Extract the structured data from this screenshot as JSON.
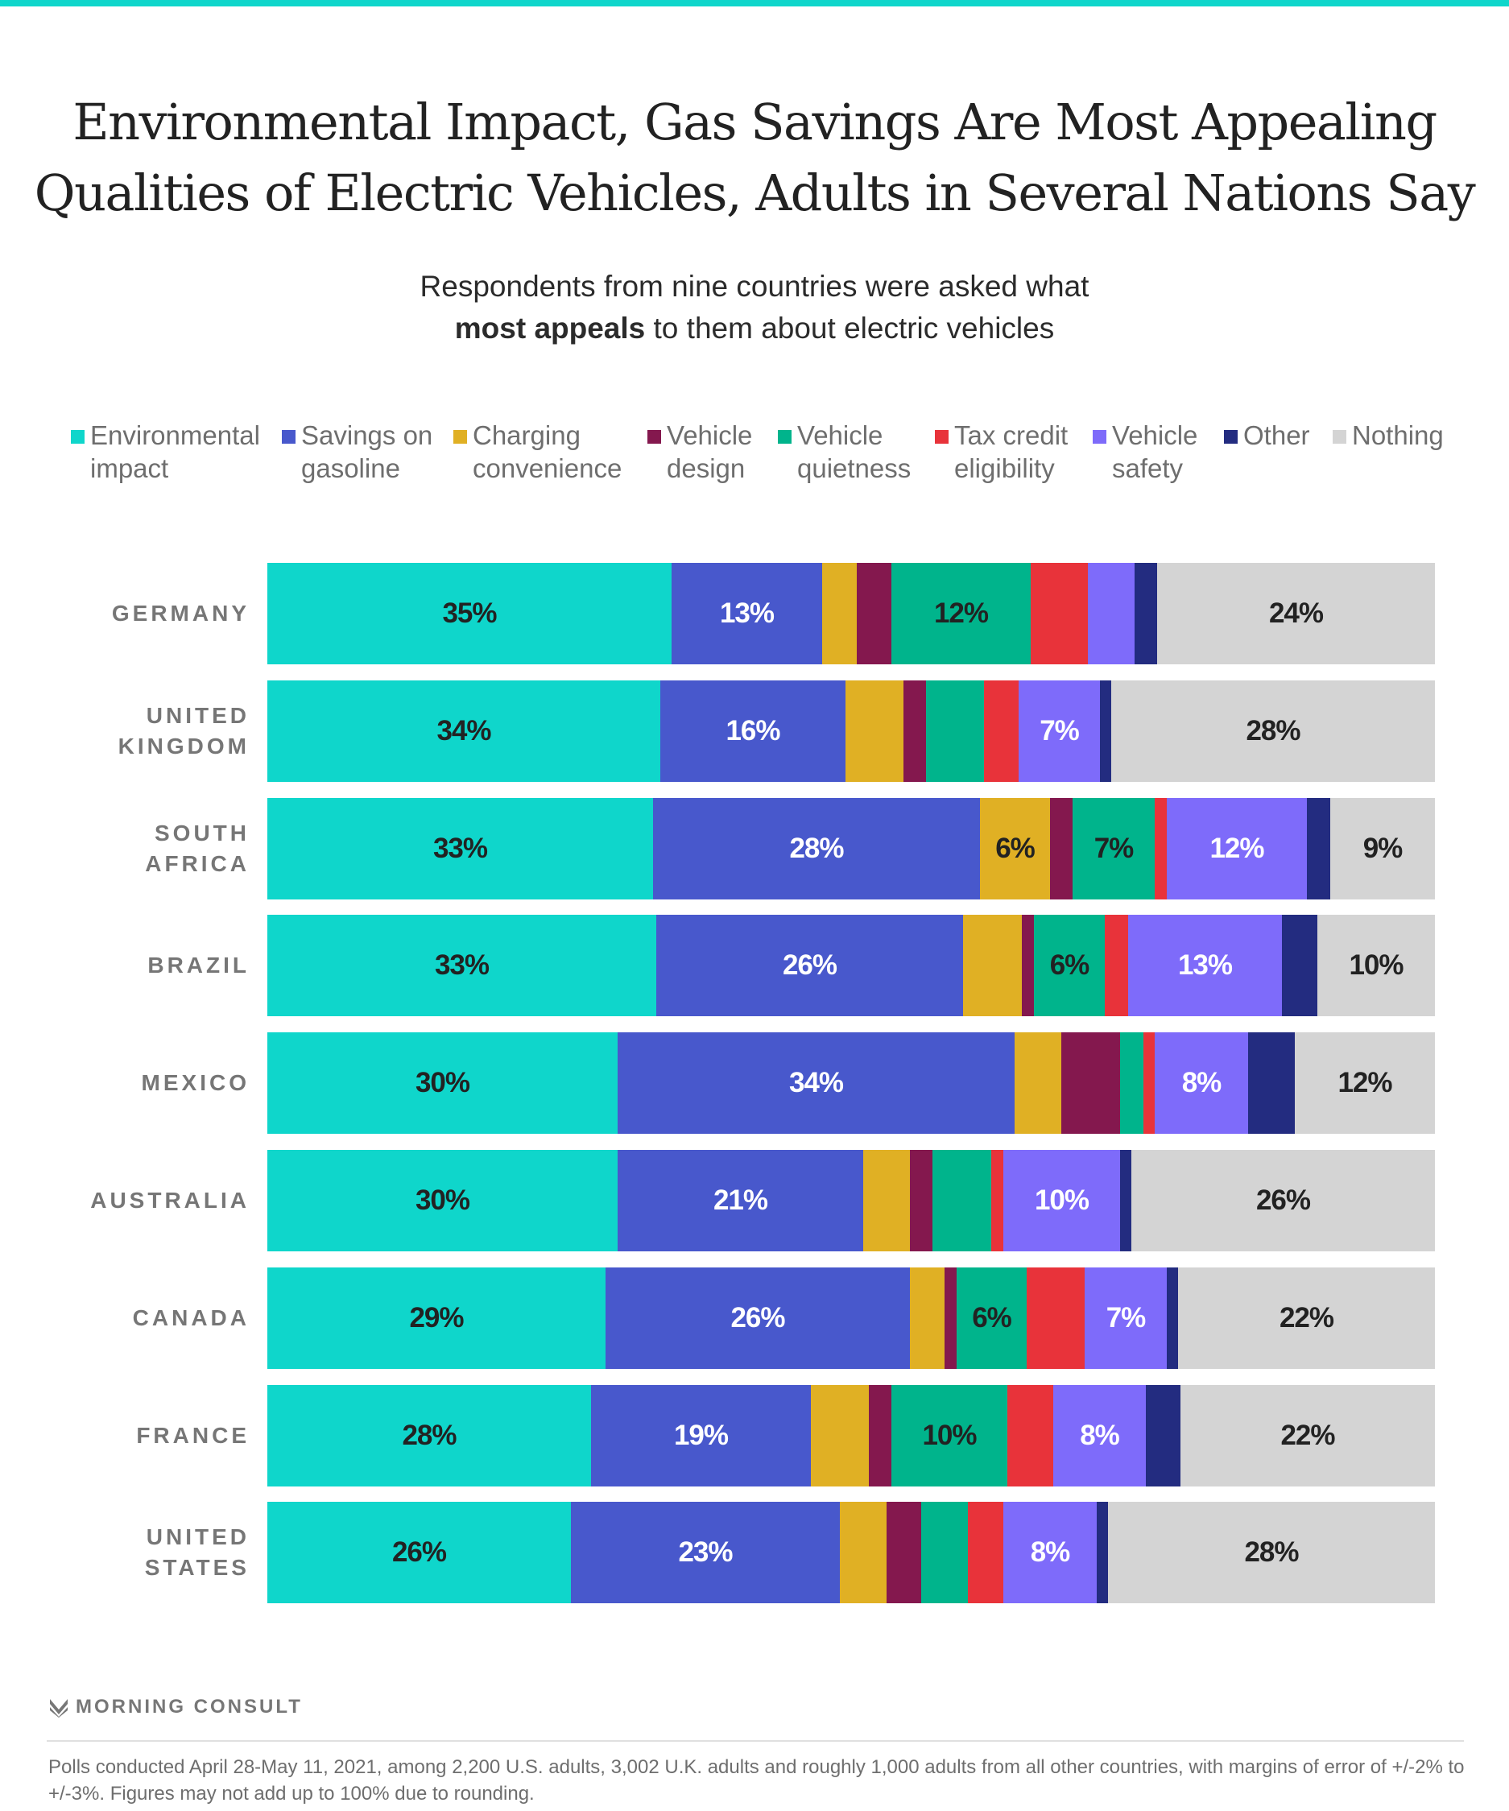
{
  "header": {
    "title_line1": "Environmental Impact, Gas Savings Are Most Appealing",
    "title_line2": "Qualities of Electric Vehicles, Adults in Several Nations Say",
    "subtitle_line1": "Respondents from nine countries were asked what",
    "subtitle_bold": "most appeals",
    "subtitle_rest": " to them about electric vehicles"
  },
  "colors": {
    "accent_top": "#0fd6cb"
  },
  "chart_data": {
    "type": "bar",
    "orientation": "horizontal",
    "stacked": true,
    "title": "Environmental Impact, Gas Savings Are Most Appealing Qualities of Electric Vehicles, Adults in Several Nations Say",
    "subtitle": "Respondents from nine countries were asked what most appeals to them about electric vehicles",
    "xlabel": "",
    "ylabel": "",
    "xlim": [
      0,
      100
    ],
    "grid": false,
    "legend_position": "top",
    "categories": [
      "GERMANY",
      "UNITED KINGDOM",
      "SOUTH AFRICA",
      "BRAZIL",
      "MEXICO",
      "AUSTRALIA",
      "CANADA",
      "FRANCE",
      "UNITED STATES"
    ],
    "series": [
      {
        "name": "Environmental impact",
        "color": "#0fd6cb",
        "label_color": "#222222",
        "values": [
          35,
          34,
          33,
          33,
          30,
          30,
          29,
          28,
          26
        ],
        "labeled": [
          true,
          true,
          true,
          true,
          true,
          true,
          true,
          true,
          true
        ]
      },
      {
        "name": "Savings on gasoline",
        "color": "#4858cc",
        "label_color": "#ffffff",
        "values": [
          13,
          16,
          28,
          26,
          34,
          21,
          26,
          19,
          23
        ],
        "labeled": [
          true,
          true,
          true,
          true,
          true,
          true,
          true,
          true,
          true
        ]
      },
      {
        "name": "Charging convenience",
        "color": "#e0b024",
        "label_color": "#222222",
        "values": [
          3,
          5,
          6,
          5,
          4,
          4,
          3,
          5,
          4
        ],
        "labeled": [
          false,
          false,
          true,
          false,
          false,
          false,
          false,
          false,
          false
        ]
      },
      {
        "name": "Vehicle design",
        "color": "#84184e",
        "label_color": "#ffffff",
        "values": [
          3,
          2,
          2,
          1,
          5,
          2,
          1,
          2,
          3
        ],
        "labeled": [
          false,
          false,
          false,
          false,
          false,
          false,
          false,
          false,
          false
        ]
      },
      {
        "name": "Vehicle quietness",
        "color": "#00b48c",
        "label_color": "#222222",
        "values": [
          12,
          5,
          7,
          6,
          2,
          5,
          6,
          10,
          4
        ],
        "labeled": [
          true,
          false,
          true,
          true,
          false,
          false,
          true,
          true,
          false
        ]
      },
      {
        "name": "Tax credit eligibility",
        "color": "#e8333a",
        "label_color": "#ffffff",
        "values": [
          5,
          3,
          1,
          2,
          1,
          1,
          5,
          4,
          3
        ],
        "labeled": [
          false,
          false,
          false,
          false,
          false,
          false,
          false,
          false,
          false
        ]
      },
      {
        "name": "Vehicle safety",
        "color": "#7e6bfa",
        "label_color": "#ffffff",
        "values": [
          4,
          7,
          12,
          13,
          8,
          10,
          7,
          8,
          8
        ],
        "labeled": [
          false,
          true,
          true,
          true,
          true,
          true,
          true,
          true,
          true
        ]
      },
      {
        "name": "Other",
        "color": "#232c80",
        "label_color": "#ffffff",
        "values": [
          2,
          1,
          2,
          3,
          4,
          1,
          1,
          3,
          1
        ],
        "labeled": [
          false,
          false,
          false,
          false,
          false,
          false,
          false,
          false,
          false
        ]
      },
      {
        "name": "Nothing",
        "color": "#d4d4d4",
        "label_color": "#222222",
        "values": [
          24,
          28,
          9,
          10,
          12,
          26,
          22,
          22,
          28
        ],
        "labeled": [
          true,
          true,
          true,
          true,
          true,
          true,
          true,
          true,
          true
        ]
      }
    ]
  },
  "legend": [
    {
      "line1": "Environmental",
      "line2": "impact"
    },
    {
      "line1": "Savings on",
      "line2": "gasoline"
    },
    {
      "line1": "Charging",
      "line2": "convenience"
    },
    {
      "line1": "Vehicle",
      "line2": "design"
    },
    {
      "line1": "Vehicle",
      "line2": "quietness"
    },
    {
      "line1": "Tax credit",
      "line2": "eligibility"
    },
    {
      "line1": "Vehicle",
      "line2": "safety"
    },
    {
      "line1": "Other",
      "line2": ""
    },
    {
      "line1": "Nothing",
      "line2": ""
    }
  ],
  "country_labels": [
    {
      "line1": "GERMANY",
      "line2": ""
    },
    {
      "line1": "UNITED",
      "line2": "KINGDOM"
    },
    {
      "line1": "SOUTH",
      "line2": "AFRICA"
    },
    {
      "line1": "BRAZIL",
      "line2": ""
    },
    {
      "line1": "MEXICO",
      "line2": ""
    },
    {
      "line1": "AUSTRALIA",
      "line2": ""
    },
    {
      "line1": "CANADA",
      "line2": ""
    },
    {
      "line1": "FRANCE",
      "line2": ""
    },
    {
      "line1": "UNITED",
      "line2": "STATES"
    }
  ],
  "footer": {
    "brand": "MORNING CONSULT",
    "note": "Polls conducted April 28-May 11, 2021, among 2,200 U.S. adults, 3,002 U.K. adults and roughly 1,000 adults from all other countries, with margins of error of +/-2% to +/-3%. Figures may not add up to 100% due to rounding."
  }
}
